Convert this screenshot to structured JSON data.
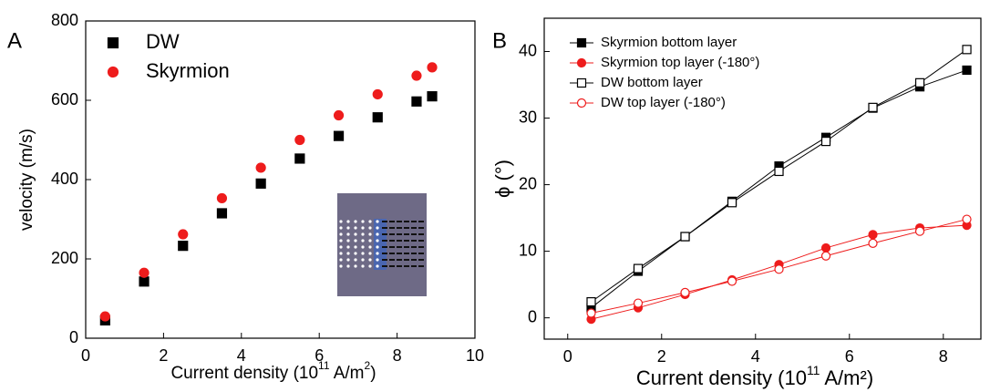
{
  "chart_data": [
    {
      "type": "scatter",
      "panel_label": "A",
      "xlabel_parts": [
        "Current density  (10",
        "11",
        " A/m",
        "2",
        ")"
      ],
      "ylabel": "velocity (m/s)",
      "xlim": [
        0,
        10
      ],
      "xticks": [
        0,
        2,
        4,
        6,
        8,
        10
      ],
      "ylim": [
        0,
        800
      ],
      "yticks": [
        0,
        200,
        400,
        600,
        800
      ],
      "legend": "top-left",
      "lines": false,
      "series": [
        {
          "name": "DW",
          "color": "#000000",
          "marker": "square",
          "filled": true,
          "x": [
            0.5,
            1.5,
            2.5,
            3.5,
            4.5,
            5.5,
            6.5,
            7.5,
            8.5,
            8.9
          ],
          "values": [
            45,
            143,
            233,
            315,
            390,
            453,
            510,
            557,
            597,
            610
          ]
        },
        {
          "name": "Skyrmion",
          "color": "#ee1c1c",
          "marker": "circle",
          "filled": true,
          "x": [
            0.5,
            1.5,
            2.5,
            3.5,
            4.5,
            5.5,
            6.5,
            7.5,
            8.5,
            8.9
          ],
          "values": [
            55,
            165,
            262,
            353,
            430,
            500,
            562,
            615,
            662,
            683
          ]
        }
      ]
    },
    {
      "type": "line",
      "panel_label": "B",
      "xlabel_parts": [
        "Current density (10",
        "11",
        " A/m²)"
      ],
      "ylabel": "ϕ (°)",
      "xlim": [
        -0.5,
        8.8
      ],
      "xticks": [
        0,
        2,
        4,
        6,
        8
      ],
      "ylim": [
        -3.2,
        45
      ],
      "yticks": [
        0,
        10,
        20,
        30,
        40
      ],
      "legend": "top-left",
      "lines": true,
      "series": [
        {
          "name": "Skyrmion bottom layer",
          "color": "#000000",
          "marker": "square",
          "filled": true,
          "x": [
            0.5,
            1.5,
            2.5,
            3.5,
            4.5,
            5.5,
            6.5,
            7.5,
            8.5
          ],
          "values": [
            1.5,
            7,
            12.2,
            17.5,
            22.8,
            27.1,
            31.5,
            34.7,
            37.2
          ]
        },
        {
          "name": "Skyrmion top layer (-180°)",
          "color": "#ee1c1c",
          "marker": "circle",
          "filled": true,
          "x": [
            0.5,
            1.5,
            2.5,
            3.5,
            4.5,
            5.5,
            6.5,
            7.5,
            8.5
          ],
          "values": [
            -0.2,
            1.5,
            3.5,
            5.7,
            8,
            10.5,
            12.5,
            13.5,
            13.9
          ]
        },
        {
          "name": "DW bottom layer",
          "color": "#000000",
          "marker": "square",
          "filled": false,
          "x": [
            0.5,
            1.5,
            2.5,
            3.5,
            4.5,
            5.5,
            6.5,
            7.5,
            8.5
          ],
          "values": [
            2.4,
            7.4,
            12.2,
            17.3,
            22,
            26.5,
            31.6,
            35.3,
            40.3
          ]
        },
        {
          "name": "DW top layer (-180°)",
          "color": "#ee1c1c",
          "marker": "circle",
          "filled": false,
          "x": [
            0.5,
            1.5,
            2.5,
            3.5,
            4.5,
            5.5,
            6.5,
            7.5,
            8.5
          ],
          "values": [
            0.7,
            2.2,
            3.8,
            5.5,
            7.3,
            9.3,
            11.2,
            13,
            14.8
          ]
        }
      ]
    }
  ]
}
